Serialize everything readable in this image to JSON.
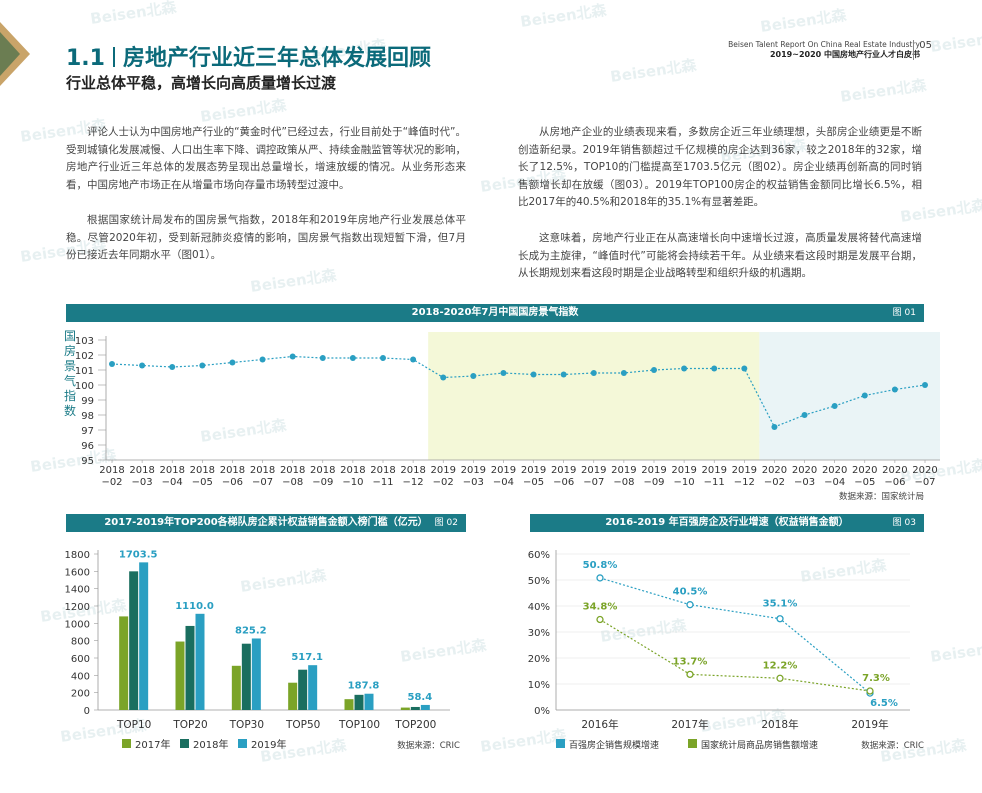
{
  "header": {
    "title_num": "1.1",
    "title_text": "房地产行业近三年总体发展回顾",
    "subtitle": "行业总体平稳，高增长向高质量增长过渡",
    "report_en": "Beisen Talent Report On China Real Estate Industry",
    "report_cn": "2019~2020 中国房地产行业人才白皮书",
    "page_no": "05"
  },
  "paragraphs": {
    "left1": "评论人士认为中国房地产行业的“黄金时代”已经过去，行业目前处于“峰值时代”。受到城镇化发展减慢、人口出生率下降、调控政策从严、持续金融监管等状况的影响，房地产行业近三年总体的发展态势呈现出总量增长，增速放缓的情况。从业务形态来看，中国房地产市场正在从增量市场向存量市场转型过渡中。",
    "left2": "根据国家统计局发布的国房景气指数，2018年和2019年房地产行业发展总体平稳。尽管2020年初，受到新冠肺炎疫情的影响，国房景气指数出现短暂下滑，但7月份已接近去年同期水平（图01）。",
    "right1": "从房地产企业的业绩表现来看，多数房企近三年业绩理想，头部房企业绩更是不断创造新纪录。2019年销售额超过千亿规模的房企达到36家，较之2018年的32家，增长了12.5%，TOP10的门槛提高至1703.5亿元（图02）。房企业绩再创新高的同时销售额增长却在放缓（图03）。2019年TOP100房企的权益销售金额同比增长6.5%，相比2017年的40.5%和2018年的35.1%有显著差距。",
    "right2": "这意味着，房地产行业正在从高速增长向中速增长过渡，高质量发展将替代高速增长成为主旋律，“峰值时代”可能将会持续若干年。从业绩来看这段时期是发展平台期，从长期规划来看这段时期是企业战略转型和组织升级的机遇期。"
  },
  "watermark": "Beisen北森",
  "colors": {
    "teal": "#1b7b87",
    "dark_green": "#1a6e5f",
    "olive": "#7ba428",
    "blue": "#2a9fc2",
    "band_2019": "#f4f8d8",
    "band_2020": "#eaf4f6"
  },
  "chart_data": [
    {
      "type": "line",
      "title": "2018-2020年7月中国国房景气指数",
      "figure_label": "图 01",
      "ylabel": "国房景气指数",
      "ylim": [
        95,
        103
      ],
      "yticks": [
        95,
        96,
        97,
        98,
        99,
        100,
        101,
        102,
        103
      ],
      "x": [
        "2018-02",
        "2018-03",
        "2018-04",
        "2018-05",
        "2018-06",
        "2018-07",
        "2018-08",
        "2018-09",
        "2018-10",
        "2018-11",
        "2018-12",
        "2019-02",
        "2019-03",
        "2019-04",
        "2019-05",
        "2019-06",
        "2019-07",
        "2019-08",
        "2019-09",
        "2019-10",
        "2019-11",
        "2019-12",
        "2020-02",
        "2020-03",
        "2020-04",
        "2020-05",
        "2020-06",
        "2020-07"
      ],
      "values": [
        101.4,
        101.3,
        101.2,
        101.3,
        101.5,
        101.7,
        101.9,
        101.8,
        101.8,
        101.8,
        101.7,
        100.5,
        100.6,
        100.8,
        100.7,
        100.7,
        100.8,
        100.8,
        101.0,
        101.1,
        101.1,
        101.1,
        97.2,
        98.0,
        98.6,
        99.3,
        99.7,
        100.0
      ],
      "source": "数据来源：国家统计局"
    },
    {
      "type": "bar",
      "title": "2017-2019年TOP200各梯队房企累计权益销售金额入榜门槛（亿元）",
      "figure_label": "图 02",
      "categories": [
        "TOP10",
        "TOP20",
        "TOP30",
        "TOP50",
        "TOP100",
        "TOP200"
      ],
      "ylim": [
        0,
        1800
      ],
      "yticks": [
        0,
        200,
        400,
        600,
        800,
        1000,
        1200,
        1400,
        1600,
        1800
      ],
      "series": [
        {
          "name": "2017年",
          "values": [
            1080,
            790,
            510,
            315,
            125,
            28
          ]
        },
        {
          "name": "2018年",
          "values": [
            1600,
            970,
            765,
            465,
            175,
            35
          ]
        },
        {
          "name": "2019年",
          "values": [
            1703.5,
            1110.0,
            825.2,
            517.1,
            187.8,
            58.4
          ]
        }
      ],
      "labels": [
        "1703.5",
        "1110.0",
        "825.2",
        "517.1",
        "187.8",
        "58.4"
      ],
      "source": "数据来源：CRIC"
    },
    {
      "type": "line",
      "title": "2016-2019 年百强房企及行业增速（权益销售金额）",
      "figure_label": "图 03",
      "x": [
        "2016年",
        "2017年",
        "2018年",
        "2019年"
      ],
      "ylim": [
        0,
        60
      ],
      "yticks": [
        "0%",
        "10%",
        "20%",
        "30%",
        "40%",
        "50%",
        "60%"
      ],
      "series": [
        {
          "name": "百强房企销售规模增速",
          "values": [
            50.8,
            40.5,
            35.1,
            6.5
          ],
          "labels": [
            "50.8%",
            "40.5%",
            "35.1%",
            "6.5%"
          ]
        },
        {
          "name": "国家统计局商品房销售额增速",
          "values": [
            34.8,
            13.7,
            12.2,
            7.3
          ],
          "labels": [
            "34.8%",
            "13.7%",
            "12.2%",
            "7.3%"
          ]
        }
      ],
      "source": "数据来源：CRIC"
    }
  ]
}
